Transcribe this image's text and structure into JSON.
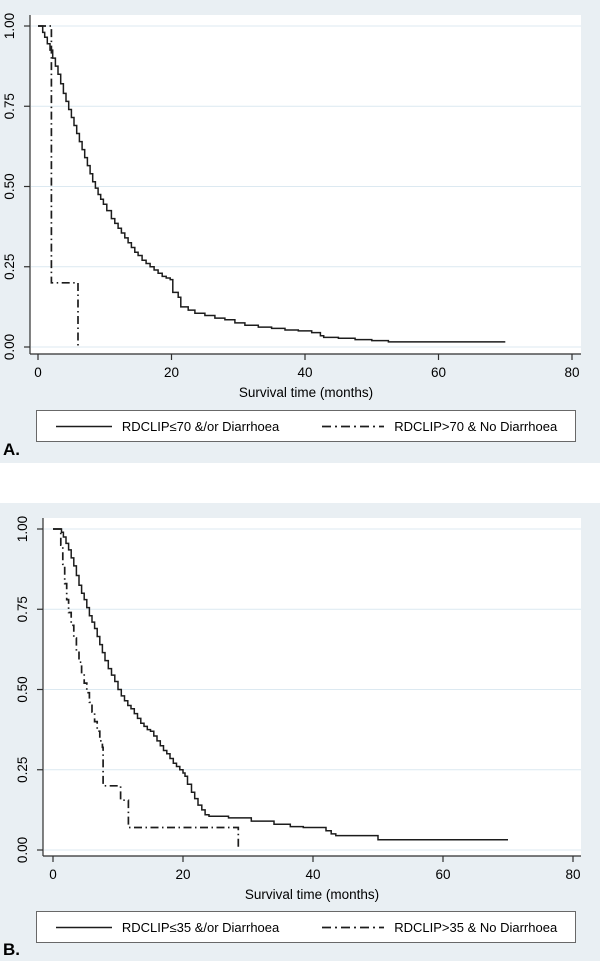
{
  "figure": {
    "background_color": "#e9eff3",
    "plot_background": "#ffffff",
    "gridline_color": "#dce9f1",
    "curve_color": "#1c1c1c",
    "axis_color": "#2f2f2f",
    "legend_border_color": "#686868",
    "text_color": "#000000"
  },
  "panels": [
    {
      "label": "A."
    },
    {
      "label": "B."
    }
  ],
  "chart_data": [
    {
      "type": "line",
      "subtype": "kaplan-meier-step",
      "panel": "A",
      "title": "",
      "xlabel": "Survival time (months)",
      "ylabel": "",
      "xlim": [
        0,
        82
      ],
      "ylim": [
        0,
        1.0
      ],
      "x_ticks": [
        0,
        20,
        40,
        60,
        80
      ],
      "y_ticks": [
        0,
        0.25,
        0.5,
        0.75,
        1
      ],
      "grid": "horizontal",
      "legend_position": "bottom",
      "series": [
        {
          "name": "RDCLIP≤70 &/or Diarrhoea",
          "line_style": "solid",
          "points": [
            [
              0,
              1
            ],
            [
              0.7,
              0.98
            ],
            [
              1,
              0.965
            ],
            [
              1.4,
              0.945
            ],
            [
              1.8,
              0.925
            ],
            [
              2.2,
              0.9
            ],
            [
              2.6,
              0.875
            ],
            [
              3,
              0.85
            ],
            [
              3.4,
              0.82
            ],
            [
              3.8,
              0.79
            ],
            [
              4.2,
              0.765
            ],
            [
              4.6,
              0.74
            ],
            [
              5,
              0.715
            ],
            [
              5.4,
              0.69
            ],
            [
              5.8,
              0.665
            ],
            [
              6.2,
              0.64
            ],
            [
              6.6,
              0.615
            ],
            [
              7,
              0.59
            ],
            [
              7.4,
              0.565
            ],
            [
              7.8,
              0.54
            ],
            [
              8.2,
              0.515
            ],
            [
              8.6,
              0.495
            ],
            [
              9,
              0.475
            ],
            [
              9.4,
              0.46
            ],
            [
              9.8,
              0.445
            ],
            [
              10.3,
              0.425
            ],
            [
              11,
              0.4
            ],
            [
              11.5,
              0.385
            ],
            [
              12,
              0.37
            ],
            [
              12.5,
              0.355
            ],
            [
              13,
              0.34
            ],
            [
              13.5,
              0.325
            ],
            [
              14,
              0.31
            ],
            [
              14.5,
              0.295
            ],
            [
              15,
              0.285
            ],
            [
              15.6,
              0.27
            ],
            [
              16.2,
              0.26
            ],
            [
              16.8,
              0.25
            ],
            [
              17.4,
              0.24
            ],
            [
              18,
              0.23
            ],
            [
              18.6,
              0.22
            ],
            [
              19.2,
              0.215
            ],
            [
              19.8,
              0.21
            ],
            [
              20.2,
              0.17
            ],
            [
              21,
              0.155
            ],
            [
              21.4,
              0.125
            ],
            [
              22.5,
              0.115
            ],
            [
              23.5,
              0.105
            ],
            [
              25,
              0.098
            ],
            [
              26.5,
              0.09
            ],
            [
              28,
              0.085
            ],
            [
              29.5,
              0.075
            ],
            [
              31,
              0.068
            ],
            [
              33,
              0.062
            ],
            [
              35,
              0.058
            ],
            [
              37,
              0.053
            ],
            [
              39,
              0.05
            ],
            [
              41,
              0.045
            ],
            [
              42.3,
              0.035
            ],
            [
              42.8,
              0.03
            ],
            [
              45,
              0.027
            ],
            [
              47.5,
              0.023
            ],
            [
              50,
              0.02
            ],
            [
              52.5,
              0.016
            ],
            [
              70,
              0.016
            ]
          ]
        },
        {
          "name": "RDCLIP>70 & No Diarrhoea",
          "line_style": "dash-dot",
          "points": [
            [
              0,
              1
            ],
            [
              2,
              1
            ],
            [
              2,
              0.2
            ],
            [
              6,
              0.2
            ],
            [
              6,
              0
            ]
          ]
        }
      ]
    },
    {
      "type": "line",
      "subtype": "kaplan-meier-step",
      "panel": "B",
      "title": "",
      "xlabel": "Survival time (months)",
      "ylabel": "",
      "xlim": [
        0,
        82
      ],
      "ylim": [
        0,
        1.0
      ],
      "x_ticks": [
        0,
        20,
        40,
        60,
        80
      ],
      "y_ticks": [
        0,
        0.25,
        0.5,
        0.75,
        1
      ],
      "grid": "horizontal",
      "legend_position": "bottom",
      "series": [
        {
          "name": "RDCLIP≤35 &/or Diarrhoea",
          "line_style": "solid",
          "points": [
            [
              0,
              1
            ],
            [
              1,
              1
            ],
            [
              1.3,
              0.99
            ],
            [
              1.6,
              0.975
            ],
            [
              2,
              0.955
            ],
            [
              2.4,
              0.935
            ],
            [
              2.8,
              0.91
            ],
            [
              3.2,
              0.885
            ],
            [
              3.6,
              0.855
            ],
            [
              4,
              0.825
            ],
            [
              4.4,
              0.8
            ],
            [
              4.8,
              0.78
            ],
            [
              5.2,
              0.755
            ],
            [
              5.6,
              0.73
            ],
            [
              6,
              0.71
            ],
            [
              6.4,
              0.69
            ],
            [
              6.8,
              0.665
            ],
            [
              7.2,
              0.64
            ],
            [
              7.6,
              0.615
            ],
            [
              8,
              0.59
            ],
            [
              8.5,
              0.565
            ],
            [
              9,
              0.545
            ],
            [
              9.5,
              0.525
            ],
            [
              10,
              0.5
            ],
            [
              10.5,
              0.48
            ],
            [
              11,
              0.465
            ],
            [
              11.5,
              0.45
            ],
            [
              12,
              0.44
            ],
            [
              12.5,
              0.425
            ],
            [
              13,
              0.41
            ],
            [
              13.5,
              0.395
            ],
            [
              14,
              0.385
            ],
            [
              14.5,
              0.375
            ],
            [
              15,
              0.37
            ],
            [
              15.5,
              0.355
            ],
            [
              16,
              0.34
            ],
            [
              16.5,
              0.325
            ],
            [
              17,
              0.31
            ],
            [
              17.5,
              0.3
            ],
            [
              18,
              0.285
            ],
            [
              18.5,
              0.27
            ],
            [
              19,
              0.26
            ],
            [
              19.5,
              0.25
            ],
            [
              20,
              0.24
            ],
            [
              20.3,
              0.23
            ],
            [
              20.7,
              0.205
            ],
            [
              21.3,
              0.18
            ],
            [
              21.8,
              0.16
            ],
            [
              22.3,
              0.14
            ],
            [
              22.9,
              0.125
            ],
            [
              23.4,
              0.11
            ],
            [
              24,
              0.105
            ],
            [
              27,
              0.1
            ],
            [
              30.5,
              0.09
            ],
            [
              34,
              0.08
            ],
            [
              36.5,
              0.073
            ],
            [
              38.5,
              0.07
            ],
            [
              42,
              0.06
            ],
            [
              42.8,
              0.05
            ],
            [
              43.5,
              0.045
            ],
            [
              50,
              0.032
            ],
            [
              70,
              0.032
            ]
          ]
        },
        {
          "name": "RDCLIP>35 & No Diarrhoea",
          "line_style": "dash-dot",
          "points": [
            [
              0,
              1
            ],
            [
              1,
              1
            ],
            [
              1.2,
              0.95
            ],
            [
              1.5,
              0.89
            ],
            [
              1.8,
              0.83
            ],
            [
              2.1,
              0.78
            ],
            [
              2.4,
              0.74
            ],
            [
              2.8,
              0.7
            ],
            [
              3.2,
              0.66
            ],
            [
              3.6,
              0.62
            ],
            [
              4,
              0.585
            ],
            [
              4.4,
              0.55
            ],
            [
              4.8,
              0.52
            ],
            [
              5.2,
              0.49
            ],
            [
              5.6,
              0.46
            ],
            [
              6,
              0.43
            ],
            [
              6.4,
              0.4
            ],
            [
              6.8,
              0.37
            ],
            [
              7.2,
              0.34
            ],
            [
              7.6,
              0.32
            ],
            [
              7.7,
              0.2
            ],
            [
              10.2,
              0.2
            ],
            [
              10.4,
              0.155
            ],
            [
              11.3,
              0.155
            ],
            [
              11.6,
              0.07
            ],
            [
              28.5,
              0.07
            ],
            [
              28.5,
              0
            ]
          ]
        }
      ]
    }
  ]
}
